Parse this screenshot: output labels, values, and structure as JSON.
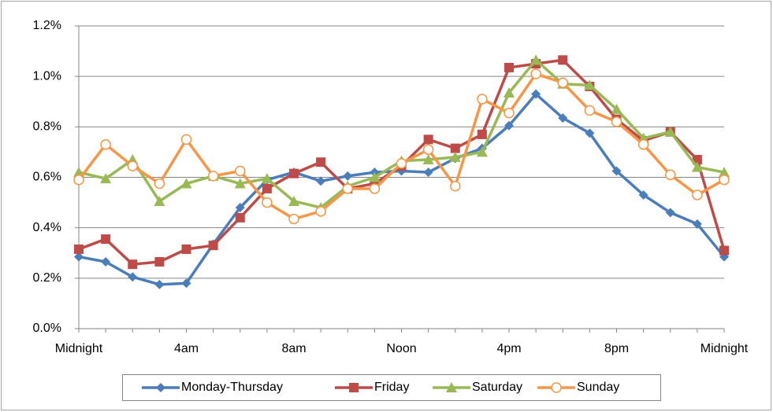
{
  "chart_data": {
    "type": "line",
    "categories": [
      "Midnight",
      null,
      null,
      null,
      "4am",
      null,
      null,
      null,
      "8am",
      null,
      null,
      null,
      "Noon",
      null,
      null,
      null,
      "4pm",
      null,
      null,
      null,
      "8pm",
      null,
      null,
      null,
      "Midnight"
    ],
    "series": [
      {
        "name": "Monday-Thursday",
        "color": "#4a7ebb",
        "marker": "diamond",
        "values": [
          0.285,
          0.265,
          0.205,
          0.175,
          0.18,
          0.335,
          0.48,
          0.59,
          0.62,
          0.585,
          0.605,
          0.62,
          0.625,
          0.62,
          0.675,
          0.715,
          0.805,
          0.93,
          0.835,
          0.775,
          0.625,
          0.53,
          0.46,
          0.415,
          0.285
        ]
      },
      {
        "name": "Friday",
        "color": "#be4b48",
        "marker": "square",
        "values": [
          0.315,
          0.355,
          0.255,
          0.265,
          0.315,
          0.33,
          0.44,
          0.555,
          0.615,
          0.66,
          0.555,
          0.575,
          0.645,
          0.75,
          0.715,
          0.77,
          1.035,
          1.05,
          1.065,
          0.96,
          0.83,
          0.745,
          0.78,
          0.67,
          0.31
        ]
      },
      {
        "name": "Saturday",
        "color": "#98b954",
        "marker": "triangle",
        "values": [
          0.62,
          0.595,
          0.67,
          0.505,
          0.575,
          0.605,
          0.575,
          0.595,
          0.505,
          0.48,
          0.565,
          0.6,
          0.665,
          0.67,
          0.68,
          0.7,
          0.935,
          1.065,
          0.97,
          0.965,
          0.87,
          0.755,
          0.78,
          0.64,
          0.62
        ]
      },
      {
        "name": "Sunday",
        "color": "#f79646",
        "marker": "circle-open",
        "values": [
          0.59,
          0.73,
          0.645,
          0.575,
          0.75,
          0.605,
          0.625,
          0.5,
          0.435,
          0.465,
          0.555,
          0.555,
          0.655,
          0.71,
          0.565,
          0.91,
          0.855,
          1.01,
          0.975,
          0.865,
          0.82,
          0.73,
          0.61,
          0.53,
          0.59
        ]
      }
    ],
    "ylim": [
      0,
      1.2
    ],
    "yticks": [
      {
        "value": 0,
        "label": "0.0%"
      },
      {
        "value": 0.2,
        "label": "0.2%"
      },
      {
        "value": 0.4,
        "label": "0.4%"
      },
      {
        "value": 0.6,
        "label": "0.6%"
      },
      {
        "value": 0.8,
        "label": "0.8%"
      },
      {
        "value": 1.0,
        "label": "1.0%"
      },
      {
        "value": 1.2,
        "label": "1.2%"
      }
    ],
    "grid": true,
    "legend": "bottom"
  }
}
